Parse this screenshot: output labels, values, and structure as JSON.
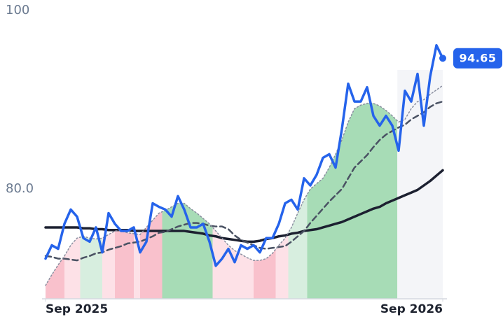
{
  "chart_data": {
    "type": "line",
    "x": [
      0,
      1,
      2,
      3,
      4,
      5,
      6,
      7,
      8,
      9,
      10,
      11,
      12,
      13,
      14,
      15,
      16,
      17,
      18,
      19,
      20,
      21,
      22,
      23,
      24,
      25,
      26,
      27,
      28,
      29,
      30,
      31,
      32,
      33,
      34,
      35,
      36,
      37,
      38,
      39,
      40,
      41,
      42,
      43,
      44,
      45,
      46,
      47,
      48,
      49,
      50,
      51,
      52,
      53,
      54,
      55,
      56,
      57,
      58,
      59,
      60,
      61,
      62,
      63
    ],
    "xlim": [
      0,
      63
    ],
    "xticks": [
      {
        "value": 0,
        "label": "Sep 2025"
      },
      {
        "value": 63,
        "label": "Sep 2026"
      }
    ],
    "ylim": [
      67.7,
      100
    ],
    "yticks": [
      {
        "value": 80,
        "label": "80.0"
      },
      100
    ],
    "series": [
      {
        "color": "#2563eb",
        "dash": "solid",
        "width": 3.5,
        "last_value_tag": true,
        "values": [
          72.2,
          73.7,
          73.3,
          76.1,
          77.7,
          76.9,
          74.5,
          74.1,
          75.7,
          72.9,
          77.3,
          76.1,
          75.3,
          75.3,
          75.7,
          72.9,
          74.1,
          78.4,
          78.0,
          77.7,
          76.9,
          79.2,
          77.7,
          75.7,
          75.7,
          76.1,
          74.1,
          71.4,
          72.2,
          73.3,
          71.8,
          73.7,
          73.3,
          73.7,
          72.9,
          74.5,
          74.5,
          76.1,
          78.4,
          78.8,
          77.7,
          81.2,
          80.4,
          81.6,
          83.5,
          83.9,
          82.4,
          86.7,
          91.8,
          89.8,
          89.8,
          91.4,
          88.2,
          87.1,
          88.2,
          87.1,
          84.3,
          91.0,
          89.8,
          92.9,
          87.1,
          92.6,
          96.1,
          94.65
        ]
      },
      {
        "color": "#8a8fa0",
        "dash": "dotted",
        "width": 1.5,
        "values": [
          69.2,
          70.4,
          71.5,
          72.5,
          73.7,
          74.5,
          74.7,
          74.5,
          74.4,
          74.5,
          74.9,
          75.3,
          75.3,
          75.1,
          75.0,
          74.9,
          75.7,
          76.5,
          77.3,
          77.6,
          78.0,
          78.4,
          78.4,
          77.8,
          77.3,
          76.7,
          76.1,
          75.3,
          74.5,
          73.7,
          73.1,
          72.7,
          72.3,
          72.0,
          72.0,
          72.2,
          72.8,
          73.7,
          74.5,
          75.7,
          77.3,
          78.8,
          80.0,
          80.6,
          81.2,
          82.4,
          83.9,
          85.5,
          87.5,
          89.0,
          89.4,
          89.6,
          89.6,
          89.3,
          88.8,
          88.2,
          87.5,
          87.8,
          89.0,
          89.8,
          90.0,
          90.6,
          91.1,
          91.6
        ]
      },
      {
        "color": "#4a5263",
        "dash": "dashed",
        "width": 2.5,
        "values": [
          72.5,
          72.4,
          72.2,
          72.2,
          72.1,
          72.0,
          72.3,
          72.5,
          72.8,
          72.9,
          73.2,
          73.4,
          73.6,
          73.9,
          74.0,
          74.1,
          74.4,
          74.7,
          75.1,
          75.2,
          75.5,
          75.8,
          76.0,
          76.2,
          76.2,
          76.1,
          75.9,
          75.8,
          75.8,
          75.5,
          74.8,
          74.3,
          74.0,
          73.7,
          73.4,
          73.3,
          73.4,
          73.5,
          73.6,
          74.1,
          74.7,
          75.3,
          76.2,
          77.0,
          77.8,
          78.6,
          79.3,
          80.0,
          81.2,
          82.4,
          83.1,
          83.8,
          84.7,
          85.5,
          86.1,
          86.5,
          86.9,
          87.2,
          87.8,
          88.2,
          88.6,
          89.2,
          89.6,
          89.8
        ]
      },
      {
        "color": "#1c2030",
        "dash": "solid",
        "width": 3.5,
        "values": [
          75.7,
          75.7,
          75.7,
          75.7,
          75.7,
          75.7,
          75.6,
          75.6,
          75.5,
          75.5,
          75.4,
          75.4,
          75.4,
          75.4,
          75.3,
          75.3,
          75.3,
          75.3,
          75.3,
          75.3,
          75.3,
          75.3,
          75.3,
          75.2,
          75.1,
          75.0,
          74.8,
          74.7,
          74.5,
          74.4,
          74.3,
          74.2,
          74.1,
          74.1,
          74.2,
          74.4,
          74.5,
          74.7,
          74.8,
          75.0,
          75.1,
          75.3,
          75.4,
          75.5,
          75.7,
          75.9,
          76.1,
          76.3,
          76.6,
          76.9,
          77.2,
          77.5,
          77.8,
          78.0,
          78.4,
          78.7,
          79.0,
          79.3,
          79.6,
          79.9,
          80.4,
          80.9,
          81.5,
          82.1
        ]
      }
    ],
    "bands_under_series": 1,
    "bands": [
      {
        "start": 0,
        "end": 3,
        "color": "#f9c1cc"
      },
      {
        "start": 3,
        "end": 5.5,
        "color": "#fde1e7"
      },
      {
        "start": 5.5,
        "end": 9,
        "color": "#d7eedf"
      },
      {
        "start": 9,
        "end": 11,
        "color": "#fde1e7"
      },
      {
        "start": 11,
        "end": 14,
        "color": "#f9c1cc"
      },
      {
        "start": 14,
        "end": 15,
        "color": "#fde1e7"
      },
      {
        "start": 15,
        "end": 18.5,
        "color": "#f9c1cc"
      },
      {
        "start": 18.5,
        "end": 26.5,
        "color": "#a7dcb6"
      },
      {
        "start": 26.5,
        "end": 33,
        "color": "#fde1e7"
      },
      {
        "start": 33,
        "end": 36.5,
        "color": "#f9c1cc"
      },
      {
        "start": 36.5,
        "end": 38.5,
        "color": "#fde1e7"
      },
      {
        "start": 38.5,
        "end": 41.5,
        "color": "#d7eedf"
      },
      {
        "start": 41.5,
        "end": 55.8,
        "color": "#a7dcb6"
      },
      {
        "start": 55.8,
        "end": 63,
        "color": "#f4f5f8"
      }
    ]
  }
}
